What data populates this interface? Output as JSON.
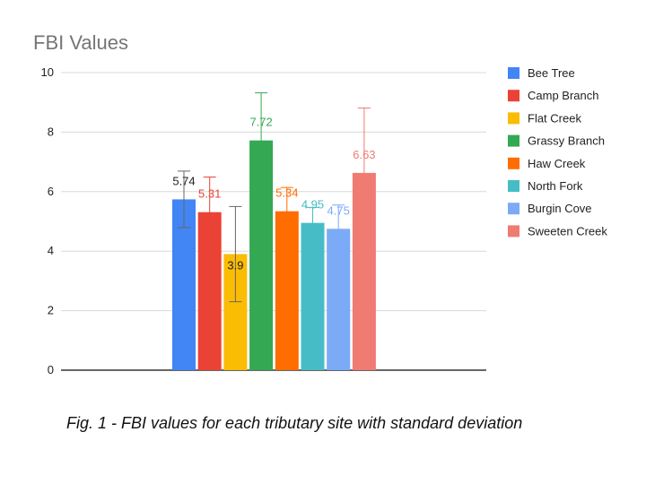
{
  "chart_data": {
    "type": "bar",
    "title": "FBI Values",
    "xlabel": "",
    "ylabel": "",
    "ylim": [
      0,
      10
    ],
    "yticks": [
      0,
      2,
      4,
      6,
      8,
      10
    ],
    "grid": true,
    "legend_position": "right",
    "series": [
      {
        "name": "Bee Tree",
        "value": 5.74,
        "label": "5.74",
        "error": 0.95,
        "color": "#4285F4",
        "label_color": "#222222"
      },
      {
        "name": "Camp Branch",
        "value": 5.31,
        "label": "5.31",
        "error": 1.18,
        "color": "#EA4335",
        "label_color": "#EA4335"
      },
      {
        "name": "Flat Creek",
        "value": 3.9,
        "label": "3.9",
        "error": 1.6,
        "color": "#FBBC04",
        "label_color": "#222222"
      },
      {
        "name": "Grassy Branch",
        "value": 7.72,
        "label": "7.72",
        "error": 1.6,
        "color": "#34A853",
        "label_color": "#34A853"
      },
      {
        "name": "Haw Creek",
        "value": 5.34,
        "label": "5.34",
        "error": 0.8,
        "color": "#FF6D01",
        "label_color": "#FF6D01"
      },
      {
        "name": "North Fork",
        "value": 4.95,
        "label": "4.95",
        "error": 0.52,
        "color": "#46BDC6",
        "label_color": "#46BDC6"
      },
      {
        "name": "Burgin Cove",
        "value": 4.75,
        "label": "4.75",
        "error": 0.8,
        "color": "#7BAAF7",
        "label_color": "#7BAAF7"
      },
      {
        "name": "Sweeten Creek",
        "value": 6.63,
        "label": "6.63",
        "error": 2.18,
        "color": "#F07B72",
        "label_color": "#F07B72"
      }
    ]
  },
  "caption": "Fig. 1 - FBI values for each tributary site with standard deviation"
}
